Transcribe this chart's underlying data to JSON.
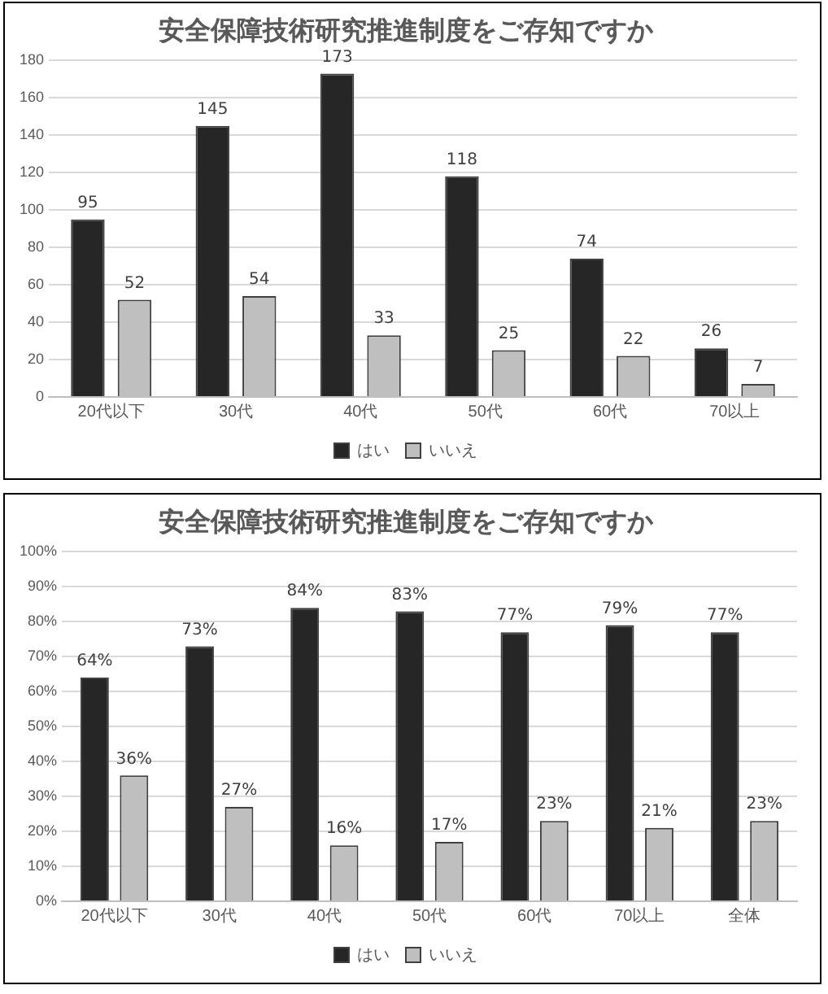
{
  "chart_data": [
    {
      "type": "bar",
      "title": "安全保障技術研究推進制度をご存知ですか",
      "categories": [
        "20代以下",
        "30代",
        "40代",
        "50代",
        "60代",
        "70以上"
      ],
      "series": [
        {
          "name": "はい",
          "color": "#262626",
          "values": [
            95,
            145,
            173,
            118,
            74,
            26
          ]
        },
        {
          "name": "いいえ",
          "color": "#bfbfbf",
          "values": [
            52,
            54,
            33,
            25,
            22,
            7
          ]
        }
      ],
      "ylim": [
        0,
        180
      ],
      "yticks": [
        0,
        20,
        40,
        60,
        80,
        100,
        120,
        140,
        160,
        180
      ],
      "grid": "y",
      "legend": "bottom",
      "data_labels": true
    },
    {
      "type": "bar",
      "title": "安全保障技術研究推進制度をご存知ですか",
      "categories": [
        "20代以下",
        "30代",
        "40代",
        "50代",
        "60代",
        "70以上",
        "全体"
      ],
      "series": [
        {
          "name": "はい",
          "color": "#262626",
          "values": [
            64,
            73,
            84,
            83,
            77,
            79,
            77
          ],
          "value_labels": [
            "64%",
            "73%",
            "84%",
            "83%",
            "77%",
            "79%",
            "77%"
          ]
        },
        {
          "name": "いいえ",
          "color": "#bfbfbf",
          "values": [
            36,
            27,
            16,
            17,
            23,
            21,
            23
          ],
          "value_labels": [
            "36%",
            "27%",
            "16%",
            "17%",
            "23%",
            "21%",
            "23%"
          ]
        }
      ],
      "ylim": [
        0,
        100
      ],
      "yticks": [
        {
          "value": 0,
          "label": "0%"
        },
        {
          "value": 10,
          "label": "10%"
        },
        {
          "value": 20,
          "label": "20%"
        },
        {
          "value": 30,
          "label": "30%"
        },
        {
          "value": 40,
          "label": "40%"
        },
        {
          "value": 50,
          "label": "50%"
        },
        {
          "value": 60,
          "label": "60%"
        },
        {
          "value": 70,
          "label": "70%"
        },
        {
          "value": 80,
          "label": "80%"
        },
        {
          "value": 90,
          "label": "90%"
        },
        {
          "value": 100,
          "label": "100%"
        }
      ],
      "grid": "y",
      "legend": "bottom"
    }
  ]
}
